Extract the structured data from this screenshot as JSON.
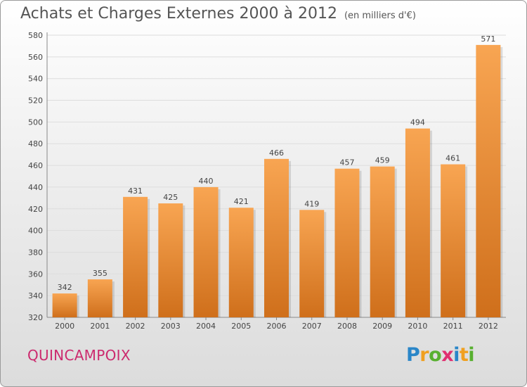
{
  "title": "Achats et Charges Externes 2000 à 2012",
  "unit_note": "(en milliers d'€)",
  "commune": "QUINCAMPOIX",
  "logo": {
    "letters": [
      "P",
      "r",
      "o",
      "x",
      "i",
      "t",
      "i"
    ],
    "colors": [
      "#2a86c8",
      "#f0a020",
      "#58b030",
      "#e03070",
      "#2a86c8",
      "#f0a020",
      "#58b030"
    ]
  },
  "colors": {
    "bar_light": "#f8a552",
    "bar_dark": "#cf6f1b",
    "grid": "#dddddd",
    "text": "#444444"
  },
  "chart_data": {
    "type": "bar",
    "title": "Achats et Charges Externes 2000 à 2012",
    "subtitle": "(en milliers d'€)",
    "xlabel": "",
    "ylabel": "",
    "ylim": [
      320,
      580
    ],
    "yticks": [
      320,
      340,
      360,
      380,
      400,
      420,
      440,
      460,
      480,
      500,
      520,
      540,
      560,
      580
    ],
    "grid": true,
    "categories": [
      "2000",
      "2001",
      "2002",
      "2003",
      "2004",
      "2005",
      "2006",
      "2007",
      "2008",
      "2009",
      "2010",
      "2011",
      "2012"
    ],
    "values": [
      342,
      355,
      431,
      425,
      440,
      421,
      466,
      419,
      457,
      459,
      494,
      461,
      571
    ]
  }
}
